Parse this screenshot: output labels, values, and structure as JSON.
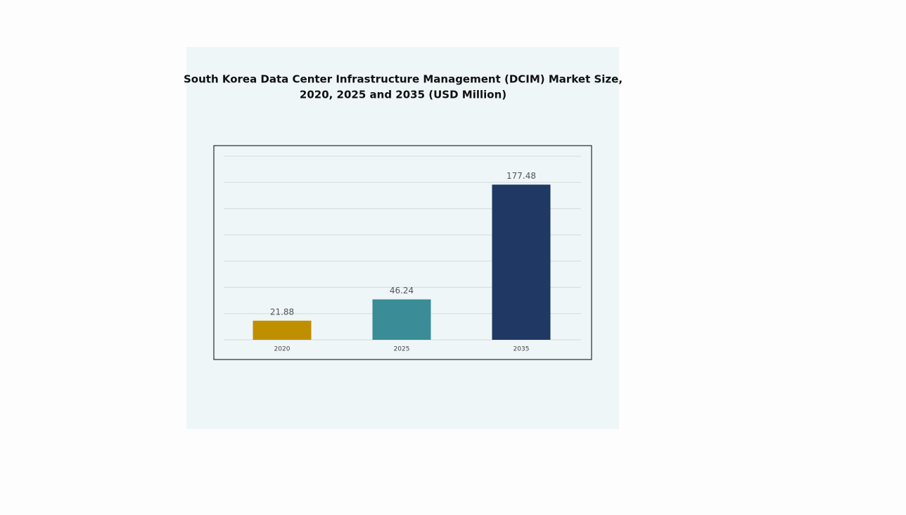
{
  "chart_data": {
    "type": "bar",
    "title": [
      "South Korea Data Center Infrastructure Management (DCIM) Market Size,",
      "2020, 2025 and 2035 (USD Million)"
    ],
    "categories": [
      "2020",
      "2025",
      "2035"
    ],
    "values": [
      21.88,
      46.24,
      177.48
    ],
    "colors": [
      "#c08f00",
      "#3a8c96",
      "#1f3864"
    ],
    "ylim": [
      0,
      210
    ],
    "yticks": [
      0,
      30,
      60,
      90,
      120,
      150,
      180,
      210
    ],
    "grid": true
  }
}
